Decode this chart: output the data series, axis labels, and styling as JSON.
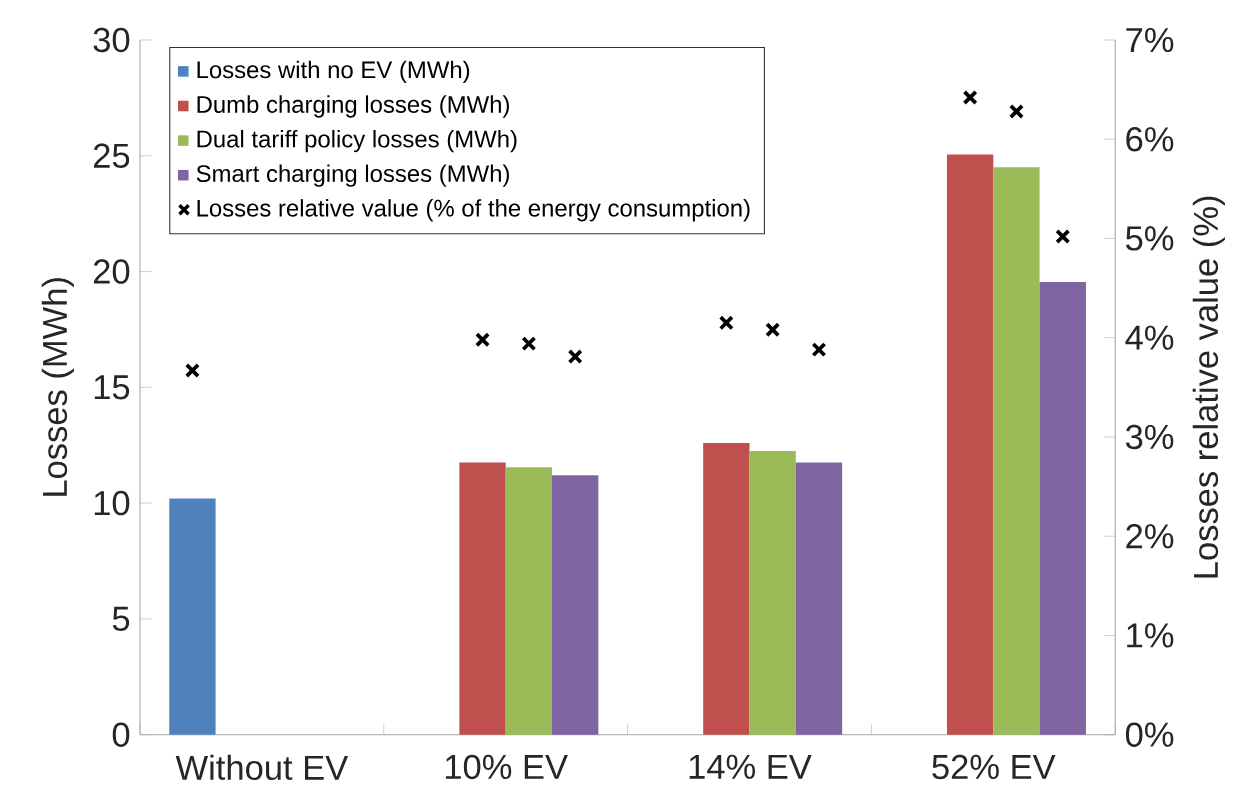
{
  "chart_data": {
    "type": "bar",
    "categories": [
      "Without EV",
      "10% EV",
      "14% EV",
      "52% EV"
    ],
    "ylabel": "Losses (MWh)",
    "y2label": "Losses relative value (%)",
    "ylim": [
      0,
      30
    ],
    "yticks": [
      0,
      5,
      10,
      15,
      20,
      25,
      30
    ],
    "y2lim": [
      0,
      7
    ],
    "y2ticks": [
      {
        "value": 0,
        "label": "0%"
      },
      {
        "value": 1,
        "label": "1%"
      },
      {
        "value": 2,
        "label": "2%"
      },
      {
        "value": 3,
        "label": "3%"
      },
      {
        "value": 4,
        "label": "4%"
      },
      {
        "value": 5,
        "label": "5%"
      },
      {
        "value": 6,
        "label": "6%"
      },
      {
        "value": 7,
        "label": "7%"
      }
    ],
    "legend": "top left",
    "series": [
      {
        "name": "Losses with no EV (MWh)",
        "color": "#4f81bd",
        "values": [
          10.2,
          null,
          null,
          null
        ]
      },
      {
        "name": "Dumb charging losses (MWh)",
        "color": "#c0504d",
        "values": [
          null,
          11.75,
          12.6,
          25.05
        ]
      },
      {
        "name": "Dual tariff policy losses (MWh)",
        "color": "#9bbb59",
        "values": [
          null,
          11.55,
          12.25,
          24.5
        ]
      },
      {
        "name": "Smart charging losses (MWh)",
        "color": "#8064a2",
        "values": [
          null,
          11.2,
          11.75,
          19.55
        ]
      },
      {
        "name": "Losses relative value (% of the energy consumption)",
        "type": "scatter",
        "axis": "y2",
        "marker": "cross",
        "color": "#000000",
        "x": [
          "Without EV",
          "10% EV",
          "10% EV",
          "10% EV",
          "14% EV",
          "14% EV",
          "14% EV",
          "52% EV",
          "52% EV",
          "52% EV"
        ],
        "values": [
          3.67,
          3.98,
          3.94,
          3.81,
          4.15,
          4.08,
          3.88,
          6.42,
          6.28,
          5.02
        ]
      }
    ]
  }
}
